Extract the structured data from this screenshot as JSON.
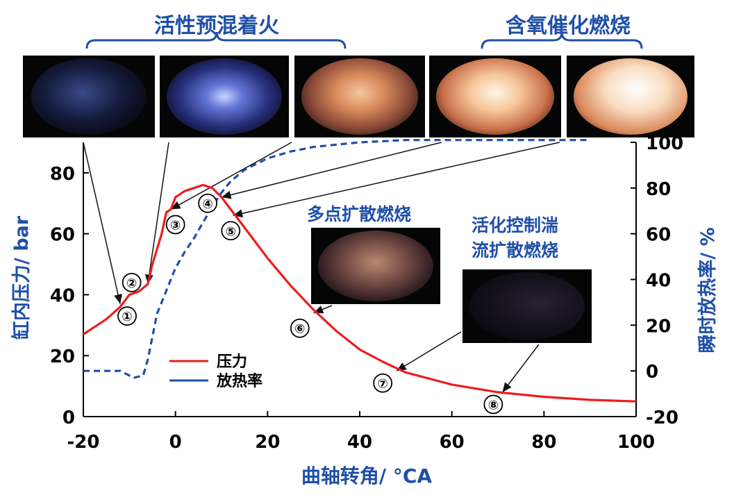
{
  "groups": {
    "premixed": "活性预混着火",
    "oxygenated": "含氧催化燃烧",
    "multipoint": "多点扩散燃烧",
    "turbulent_line1": "活化控制湍",
    "turbulent_line2": "流扩散燃烧"
  },
  "chart_data": {
    "type": "line",
    "xlabel": "曲轴转角/ °CA",
    "ylabel_left": "缸内压力/ bar",
    "ylabel_right": "瞬时放热率/ %",
    "xlim": [
      -20,
      100
    ],
    "ylim_left": [
      0,
      90
    ],
    "ylim_right": [
      -20,
      100
    ],
    "x_ticks": [
      "-20",
      "0",
      "20",
      "40",
      "60",
      "80",
      "100"
    ],
    "y_left_ticks": [
      "0",
      "20",
      "40",
      "60",
      "80"
    ],
    "y_right_ticks": [
      "-20",
      "0",
      "20",
      "40",
      "60",
      "80",
      "100"
    ],
    "grid": false,
    "legend_position": "lower-left",
    "series": [
      {
        "name": "压力",
        "color": "#ee1c1c",
        "style": "solid",
        "axis": "left",
        "x": [
          -20,
          -15,
          -12,
          -10,
          -8,
          -6,
          -5,
          -3,
          -2,
          -1,
          0,
          2,
          4,
          6,
          8,
          10,
          12,
          15,
          20,
          25,
          30,
          35,
          40,
          45,
          50,
          60,
          70,
          80,
          90,
          100
        ],
        "y": [
          27,
          32,
          36,
          40,
          41,
          43.5,
          50,
          60,
          67,
          68,
          72,
          74,
          75,
          76,
          75,
          72,
          68,
          62,
          52,
          43,
          35,
          28,
          22,
          18,
          14.5,
          10.5,
          8,
          6.5,
          5.5,
          5
        ]
      },
      {
        "name": "放热率",
        "color": "#1f4fa8",
        "style": "dashed",
        "axis": "right",
        "x": [
          -20,
          -12,
          -10,
          -9,
          -7,
          -6,
          -5,
          -4,
          -2,
          0,
          2,
          4,
          6,
          8,
          10,
          12,
          15,
          20,
          25,
          30,
          40,
          50,
          60,
          70,
          80,
          90
        ],
        "y": [
          0,
          0,
          -2,
          -3,
          -2,
          5,
          15,
          25,
          35,
          45,
          52,
          58,
          65,
          72,
          78,
          83,
          88,
          93,
          96,
          98,
          100,
          101,
          101,
          101,
          101,
          101
        ]
      }
    ],
    "markers": [
      {
        "label": "①",
        "x": -10.5,
        "y": 33
      },
      {
        "label": "②",
        "x": -9.5,
        "y": 44
      },
      {
        "label": "③",
        "x": 0,
        "y": 63
      },
      {
        "label": "④",
        "x": 7,
        "y": 70
      },
      {
        "label": "⑤",
        "x": 12,
        "y": 61
      },
      {
        "label": "⑥",
        "x": 27,
        "y": 29
      },
      {
        "label": "⑦",
        "x": 45,
        "y": 11
      },
      {
        "label": "⑧",
        "x": 69,
        "y": 4
      }
    ]
  }
}
